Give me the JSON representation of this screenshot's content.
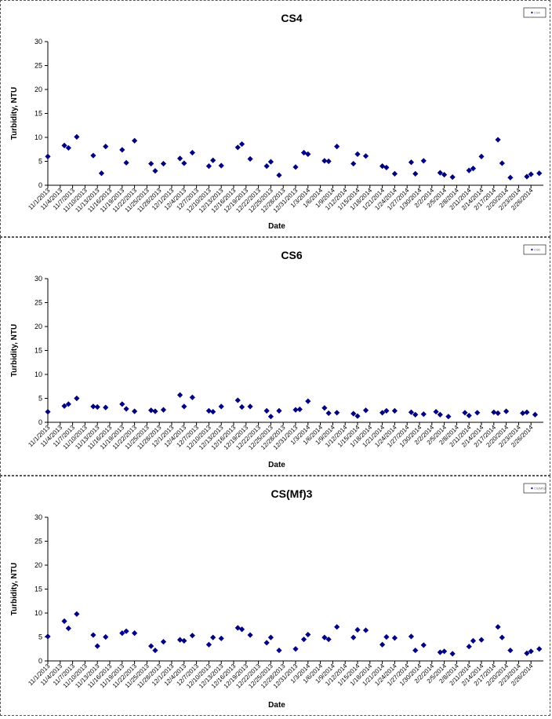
{
  "charts": [
    {
      "type": "scatter",
      "title": "CS4",
      "xlabel": "Date",
      "ylabel": "Turbidity, NTU",
      "legend_label": "CS4",
      "legend_position": "top-right",
      "ylim": [
        0,
        30
      ],
      "yticks": [
        0,
        5,
        10,
        15,
        20,
        25,
        30
      ],
      "grid": false,
      "marker_color": "#000080",
      "xlim": [
        "11/1/2013",
        "3/1/2014"
      ],
      "xtick_labels": [
        "11/1/2013",
        "11/4/2013",
        "11/7/2013",
        "11/10/2013",
        "11/13/2013",
        "11/16/2013",
        "11/19/2013",
        "11/22/2013",
        "11/25/2013",
        "11/28/2013",
        "12/1/2013",
        "12/4/2013",
        "12/7/2013",
        "12/10/2013",
        "12/13/2013",
        "12/16/2013",
        "12/19/2013",
        "12/22/2013",
        "12/25/2013",
        "12/28/2013",
        "12/31/2013",
        "1/3/2014",
        "1/6/2014",
        "1/9/2014",
        "1/12/2014",
        "1/15/2014",
        "1/18/2014",
        "1/21/2014",
        "1/24/2014",
        "1/27/2014",
        "1/30/2014",
        "2/2/2014",
        "2/5/2014",
        "2/8/2014",
        "2/11/2014",
        "2/14/2014",
        "2/17/2014",
        "2/20/2014",
        "2/23/2014",
        "2/26/2014"
      ],
      "points": [
        {
          "x": "11/1/2013",
          "y": 6.0
        },
        {
          "x": "11/5/2013",
          "y": 8.3
        },
        {
          "x": "11/6/2013",
          "y": 7.8
        },
        {
          "x": "11/8/2013",
          "y": 10.1
        },
        {
          "x": "11/12/2013",
          "y": 6.2
        },
        {
          "x": "11/14/2013",
          "y": 2.5
        },
        {
          "x": "11/15/2013",
          "y": 8.1
        },
        {
          "x": "11/19/2013",
          "y": 7.4
        },
        {
          "x": "11/20/2013",
          "y": 4.7
        },
        {
          "x": "11/22/2013",
          "y": 9.3
        },
        {
          "x": "11/26/2013",
          "y": 4.5
        },
        {
          "x": "11/27/2013",
          "y": 3.0
        },
        {
          "x": "11/29/2013",
          "y": 4.5
        },
        {
          "x": "12/3/2013",
          "y": 5.6
        },
        {
          "x": "12/4/2013",
          "y": 4.6
        },
        {
          "x": "12/6/2013",
          "y": 6.8
        },
        {
          "x": "12/10/2013",
          "y": 4.0
        },
        {
          "x": "12/11/2013",
          "y": 5.2
        },
        {
          "x": "12/13/2013",
          "y": 4.1
        },
        {
          "x": "12/17/2013",
          "y": 7.9
        },
        {
          "x": "12/18/2013",
          "y": 8.6
        },
        {
          "x": "12/20/2013",
          "y": 5.5
        },
        {
          "x": "12/24/2013",
          "y": 4.0
        },
        {
          "x": "12/25/2013",
          "y": 4.9
        },
        {
          "x": "12/27/2013",
          "y": 2.1
        },
        {
          "x": "12/31/2013",
          "y": 3.8
        },
        {
          "x": "1/2/2014",
          "y": 6.8
        },
        {
          "x": "1/3/2014",
          "y": 6.5
        },
        {
          "x": "1/7/2014",
          "y": 5.1
        },
        {
          "x": "1/8/2014",
          "y": 5.0
        },
        {
          "x": "1/10/2014",
          "y": 8.1
        },
        {
          "x": "1/14/2014",
          "y": 4.5
        },
        {
          "x": "1/15/2014",
          "y": 6.5
        },
        {
          "x": "1/17/2014",
          "y": 6.1
        },
        {
          "x": "1/21/2014",
          "y": 4.0
        },
        {
          "x": "1/22/2014",
          "y": 3.7
        },
        {
          "x": "1/24/2014",
          "y": 2.4
        },
        {
          "x": "1/28/2014",
          "y": 4.8
        },
        {
          "x": "1/29/2014",
          "y": 2.4
        },
        {
          "x": "1/31/2014",
          "y": 5.1
        },
        {
          "x": "2/4/2014",
          "y": 2.6
        },
        {
          "x": "2/5/2014",
          "y": 2.2
        },
        {
          "x": "2/7/2014",
          "y": 1.7
        },
        {
          "x": "2/11/2014",
          "y": 3.1
        },
        {
          "x": "2/12/2014",
          "y": 3.5
        },
        {
          "x": "2/14/2014",
          "y": 6.0
        },
        {
          "x": "2/18/2014",
          "y": 9.5
        },
        {
          "x": "2/19/2014",
          "y": 4.6
        },
        {
          "x": "2/21/2014",
          "y": 1.6
        },
        {
          "x": "2/25/2014",
          "y": 1.8
        },
        {
          "x": "2/26/2014",
          "y": 2.3
        },
        {
          "x": "2/28/2014",
          "y": 2.5
        }
      ]
    },
    {
      "type": "scatter",
      "title": "CS6",
      "xlabel": "Date",
      "ylabel": "Turbidity, NTU",
      "legend_label": "CS6",
      "legend_position": "top-right",
      "ylim": [
        0,
        30
      ],
      "yticks": [
        0,
        5,
        10,
        15,
        20,
        25,
        30
      ],
      "grid": false,
      "marker_color": "#000080",
      "xlim": [
        "11/1/2013",
        "3/1/2014"
      ],
      "xtick_labels": [
        "11/1/2013",
        "11/4/2013",
        "11/7/2013",
        "11/10/2013",
        "11/13/2013",
        "11/16/2013",
        "11/19/2013",
        "11/22/2013",
        "11/25/2013",
        "11/28/2013",
        "12/1/2013",
        "12/4/2013",
        "12/7/2013",
        "12/10/2013",
        "12/13/2013",
        "12/16/2013",
        "12/19/2013",
        "12/22/2013",
        "12/25/2013",
        "12/28/2013",
        "12/31/2013",
        "1/3/2014",
        "1/6/2014",
        "1/9/2014",
        "1/12/2014",
        "1/15/2014",
        "1/18/2014",
        "1/21/2014",
        "1/24/2014",
        "1/27/2014",
        "1/30/2014",
        "2/2/2014",
        "2/5/2014",
        "2/8/2014",
        "2/11/2014",
        "2/14/2014",
        "2/17/2014",
        "2/20/2014",
        "2/23/2014",
        "2/26/2014"
      ],
      "points": [
        {
          "x": "11/1/2013",
          "y": 2.2
        },
        {
          "x": "11/5/2013",
          "y": 3.4
        },
        {
          "x": "11/6/2013",
          "y": 3.8
        },
        {
          "x": "11/8/2013",
          "y": 5.0
        },
        {
          "x": "11/12/2013",
          "y": 3.3
        },
        {
          "x": "11/13/2013",
          "y": 3.2
        },
        {
          "x": "11/15/2013",
          "y": 3.1
        },
        {
          "x": "11/19/2013",
          "y": 3.8
        },
        {
          "x": "11/20/2013",
          "y": 2.8
        },
        {
          "x": "11/22/2013",
          "y": 2.3
        },
        {
          "x": "11/26/2013",
          "y": 2.5
        },
        {
          "x": "11/27/2013",
          "y": 2.3
        },
        {
          "x": "11/29/2013",
          "y": 2.6
        },
        {
          "x": "12/3/2013",
          "y": 5.7
        },
        {
          "x": "12/4/2013",
          "y": 3.3
        },
        {
          "x": "12/6/2013",
          "y": 5.2
        },
        {
          "x": "12/10/2013",
          "y": 2.4
        },
        {
          "x": "12/11/2013",
          "y": 2.2
        },
        {
          "x": "12/13/2013",
          "y": 3.3
        },
        {
          "x": "12/17/2013",
          "y": 4.6
        },
        {
          "x": "12/18/2013",
          "y": 3.2
        },
        {
          "x": "12/20/2013",
          "y": 3.3
        },
        {
          "x": "12/24/2013",
          "y": 2.4
        },
        {
          "x": "12/25/2013",
          "y": 1.2
        },
        {
          "x": "12/27/2013",
          "y": 2.4
        },
        {
          "x": "12/31/2013",
          "y": 2.6
        },
        {
          "x": "1/1/2014",
          "y": 2.7
        },
        {
          "x": "1/3/2014",
          "y": 4.4
        },
        {
          "x": "1/7/2014",
          "y": 3.0
        },
        {
          "x": "1/8/2014",
          "y": 1.9
        },
        {
          "x": "1/10/2014",
          "y": 2.0
        },
        {
          "x": "1/14/2014",
          "y": 1.8
        },
        {
          "x": "1/15/2014",
          "y": 1.3
        },
        {
          "x": "1/17/2014",
          "y": 2.5
        },
        {
          "x": "1/21/2014",
          "y": 2.0
        },
        {
          "x": "1/22/2014",
          "y": 2.4
        },
        {
          "x": "1/24/2014",
          "y": 2.4
        },
        {
          "x": "1/28/2014",
          "y": 2.1
        },
        {
          "x": "1/29/2014",
          "y": 1.6
        },
        {
          "x": "1/31/2014",
          "y": 1.7
        },
        {
          "x": "2/3/2014",
          "y": 2.2
        },
        {
          "x": "2/4/2014",
          "y": 1.6
        },
        {
          "x": "2/6/2014",
          "y": 1.2
        },
        {
          "x": "2/10/2014",
          "y": 2.0
        },
        {
          "x": "2/11/2014",
          "y": 1.4
        },
        {
          "x": "2/13/2014",
          "y": 2.0
        },
        {
          "x": "2/17/2014",
          "y": 2.1
        },
        {
          "x": "2/18/2014",
          "y": 1.9
        },
        {
          "x": "2/20/2014",
          "y": 2.3
        },
        {
          "x": "2/24/2014",
          "y": 1.9
        },
        {
          "x": "2/25/2014",
          "y": 2.1
        },
        {
          "x": "2/27/2014",
          "y": 1.6
        }
      ]
    },
    {
      "type": "scatter",
      "title": "CS(Mf)3",
      "xlabel": "Date",
      "ylabel": "Turbidity, NTU",
      "legend_label": "CS(Mf)3",
      "legend_position": "top-right",
      "ylim": [
        0,
        30
      ],
      "yticks": [
        0,
        5,
        10,
        15,
        20,
        25,
        30
      ],
      "grid": false,
      "marker_color": "#000080",
      "xlim": [
        "11/1/2013",
        "3/1/2014"
      ],
      "xtick_labels": [
        "11/1/2013",
        "11/4/2013",
        "11/7/2013",
        "11/10/2013",
        "11/13/2013",
        "11/16/2013",
        "11/19/2013",
        "11/22/2013",
        "11/25/2013",
        "11/28/2013",
        "12/1/2013",
        "12/4/2013",
        "12/7/2013",
        "12/10/2013",
        "12/13/2013",
        "12/16/2013",
        "12/19/2013",
        "12/22/2013",
        "12/25/2013",
        "12/28/2013",
        "12/31/2013",
        "1/3/2014",
        "1/6/2014",
        "1/9/2014",
        "1/12/2014",
        "1/15/2014",
        "1/18/2014",
        "1/21/2014",
        "1/24/2014",
        "1/27/2014",
        "1/30/2014",
        "2/2/2014",
        "2/5/2014",
        "2/8/2014",
        "2/11/2014",
        "2/14/2014",
        "2/17/2014",
        "2/20/2014",
        "2/23/2014",
        "2/26/2014"
      ],
      "points": [
        {
          "x": "11/1/2013",
          "y": 5.1
        },
        {
          "x": "11/5/2013",
          "y": 8.3
        },
        {
          "x": "11/6/2013",
          "y": 6.8
        },
        {
          "x": "11/8/2013",
          "y": 9.8
        },
        {
          "x": "11/12/2013",
          "y": 5.4
        },
        {
          "x": "11/13/2013",
          "y": 3.1
        },
        {
          "x": "11/15/2013",
          "y": 5.0
        },
        {
          "x": "11/19/2013",
          "y": 5.8
        },
        {
          "x": "11/20/2013",
          "y": 6.2
        },
        {
          "x": "11/22/2013",
          "y": 5.8
        },
        {
          "x": "11/26/2013",
          "y": 3.1
        },
        {
          "x": "11/27/2013",
          "y": 2.2
        },
        {
          "x": "11/29/2013",
          "y": 4.0
        },
        {
          "x": "12/3/2013",
          "y": 4.4
        },
        {
          "x": "12/4/2013",
          "y": 4.2
        },
        {
          "x": "12/6/2013",
          "y": 5.3
        },
        {
          "x": "12/10/2013",
          "y": 3.4
        },
        {
          "x": "12/11/2013",
          "y": 4.9
        },
        {
          "x": "12/13/2013",
          "y": 4.7
        },
        {
          "x": "12/17/2013",
          "y": 6.9
        },
        {
          "x": "12/18/2013",
          "y": 6.6
        },
        {
          "x": "12/20/2013",
          "y": 5.4
        },
        {
          "x": "12/24/2013",
          "y": 3.8
        },
        {
          "x": "12/25/2013",
          "y": 4.9
        },
        {
          "x": "12/27/2013",
          "y": 2.2
        },
        {
          "x": "12/31/2013",
          "y": 2.5
        },
        {
          "x": "1/2/2014",
          "y": 4.5
        },
        {
          "x": "1/3/2014",
          "y": 5.5
        },
        {
          "x": "1/7/2014",
          "y": 4.9
        },
        {
          "x": "1/8/2014",
          "y": 4.5
        },
        {
          "x": "1/10/2014",
          "y": 7.1
        },
        {
          "x": "1/14/2014",
          "y": 4.9
        },
        {
          "x": "1/15/2014",
          "y": 6.5
        },
        {
          "x": "1/17/2014",
          "y": 6.4
        },
        {
          "x": "1/21/2014",
          "y": 3.4
        },
        {
          "x": "1/22/2014",
          "y": 5.0
        },
        {
          "x": "1/24/2014",
          "y": 4.8
        },
        {
          "x": "1/28/2014",
          "y": 5.1
        },
        {
          "x": "1/29/2014",
          "y": 2.2
        },
        {
          "x": "1/31/2014",
          "y": 3.3
        },
        {
          "x": "2/4/2014",
          "y": 1.8
        },
        {
          "x": "2/5/2014",
          "y": 2.0
        },
        {
          "x": "2/7/2014",
          "y": 1.5
        },
        {
          "x": "2/11/2014",
          "y": 3.0
        },
        {
          "x": "2/12/2014",
          "y": 4.2
        },
        {
          "x": "2/14/2014",
          "y": 4.4
        },
        {
          "x": "2/18/2014",
          "y": 7.1
        },
        {
          "x": "2/19/2014",
          "y": 4.9
        },
        {
          "x": "2/21/2014",
          "y": 2.2
        },
        {
          "x": "2/25/2014",
          "y": 1.6
        },
        {
          "x": "2/26/2014",
          "y": 2.0
        },
        {
          "x": "2/28/2014",
          "y": 2.5
        }
      ]
    }
  ]
}
